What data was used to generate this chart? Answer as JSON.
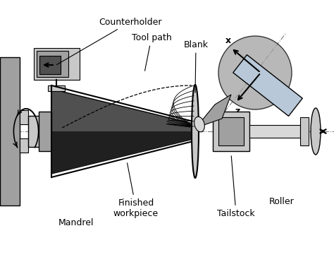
{
  "title": "",
  "background_color": "#ffffff",
  "labels": {
    "counterholder": "Counterholder",
    "tool_path": "Tool path",
    "blank": "Blank",
    "finished_workpiece": "Finished\nworkpiece",
    "mandrel": "Mandrel",
    "tailstock": "Tailstock",
    "roller": "Roller",
    "x_label": "x",
    "z_label": "z"
  },
  "colors": {
    "light_gray": "#c8c8c8",
    "mid_gray": "#a0a0a0",
    "dark_gray": "#505050",
    "very_dark": "#202020",
    "white": "#ffffff",
    "light_blue_gray": "#b8c8d8",
    "pale": "#d8d8d8"
  }
}
